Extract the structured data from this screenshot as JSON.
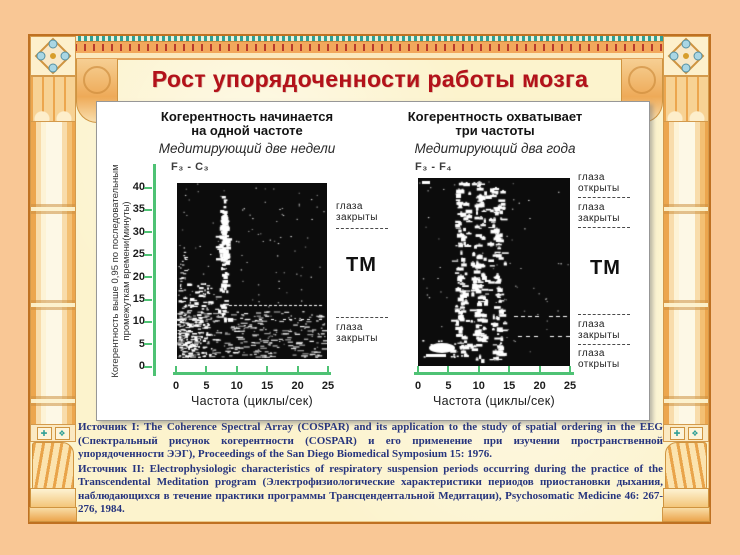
{
  "slide": {
    "title": "Рост упорядоченности работы мозга"
  },
  "panel": {
    "left_chart": {
      "title_line1": "Когерентность начинается",
      "title_line2": "на одной частоте",
      "subtitle": "Медитирующий две недели",
      "series_label": "F₃ - C₃",
      "y_label_line1": "Когерентность выше 0,95 по последовательным",
      "y_label_line2": "промежуткам времени(минуты)",
      "x_label": "Частота (циклы/сек)",
      "annotation_top": "глаза закрыты",
      "annotation_middle": "ТМ",
      "annotation_bottom": "глаза закрыты"
    },
    "right_chart": {
      "title_line1": "Когерентность охватывает",
      "title_line2": "три частоты",
      "subtitle": "Медитирующий два года",
      "series_label": "F₃ - F₄",
      "x_label": "Частота (циклы/сек)",
      "annotation_top1": "глаза открыты",
      "annotation_top2": "глаза закрыты",
      "annotation_middle": "ТМ",
      "annotation_bottom1": "глаза закрыты",
      "annotation_bottom2": "глаза открыты"
    }
  },
  "chart_data": [
    {
      "type": "heatmap",
      "title": "Когерентность начинается на одной частоте",
      "subtitle": "Медитирующий две недели",
      "series": "F₃ - C₃",
      "xlabel": "Частота (циклы/сек)",
      "ylabel": "Когерентность выше 0,95 по последовательным промежуткам времени(минуты)",
      "x_ticks": [
        "0",
        "5",
        "10",
        "15",
        "20",
        "25"
      ],
      "y_ticks": [
        "40",
        "35",
        "30",
        "25",
        "20",
        "15",
        "10",
        "5",
        "0"
      ],
      "xlim": [
        0,
        25
      ],
      "ylim": [
        0,
        40
      ],
      "annotations": [
        "глаза закрыты",
        "ТМ",
        "глаза закрыты"
      ],
      "coherence_peak_frequencies_hz": [
        9
      ]
    },
    {
      "type": "heatmap",
      "title": "Когерентность охватывает три частоты",
      "subtitle": "Медитирующий два года",
      "series": "F₃ - F₄",
      "xlabel": "Частота (циклы/сек)",
      "x_ticks": [
        "0",
        "5",
        "10",
        "15",
        "20",
        "25"
      ],
      "xlim": [
        0,
        25
      ],
      "annotations": [
        "глаза открыты",
        "глаза закрыты",
        "ТМ",
        "глаза закрыты",
        "глаза открыты"
      ],
      "coherence_peak_frequencies_hz": [
        7,
        9,
        11
      ]
    }
  ],
  "sources": {
    "source1": "Источник I: The Coherence Spectral Array (COSPAR) and its application to the study of spatial ordering in the EEG (Спектральный рисунок когерентности (COSPAR) и его применение при изучении пространственной упорядоченности ЭЭГ), Proceedings of the San Diego Biomedical Symposium 15: 1976.",
    "source2": "Источник II: Electrophysiologic characteristics of respiratory suspension periods occurring during the practice of the Transcendental Meditation program (Электрофизиологические характеристики периодов приостановки дыхания, наблюдающихся в течение практики программы Трансцендентальной Медитации), Psychosomatic Medicine 46: 267-276, 1984."
  },
  "colors": {
    "slide_background": "#fcf3cd",
    "outer_margin": "#f9c795",
    "title_red": "#b3121a",
    "axis_green": "#4ec274",
    "source_text_navy": "#27357e",
    "frame_orange": "#bf7122",
    "plot_background": "#0c0c0c"
  },
  "decorations": {
    "tile_cross_glyph": "✚",
    "tile_flower_glyph": "❖"
  }
}
